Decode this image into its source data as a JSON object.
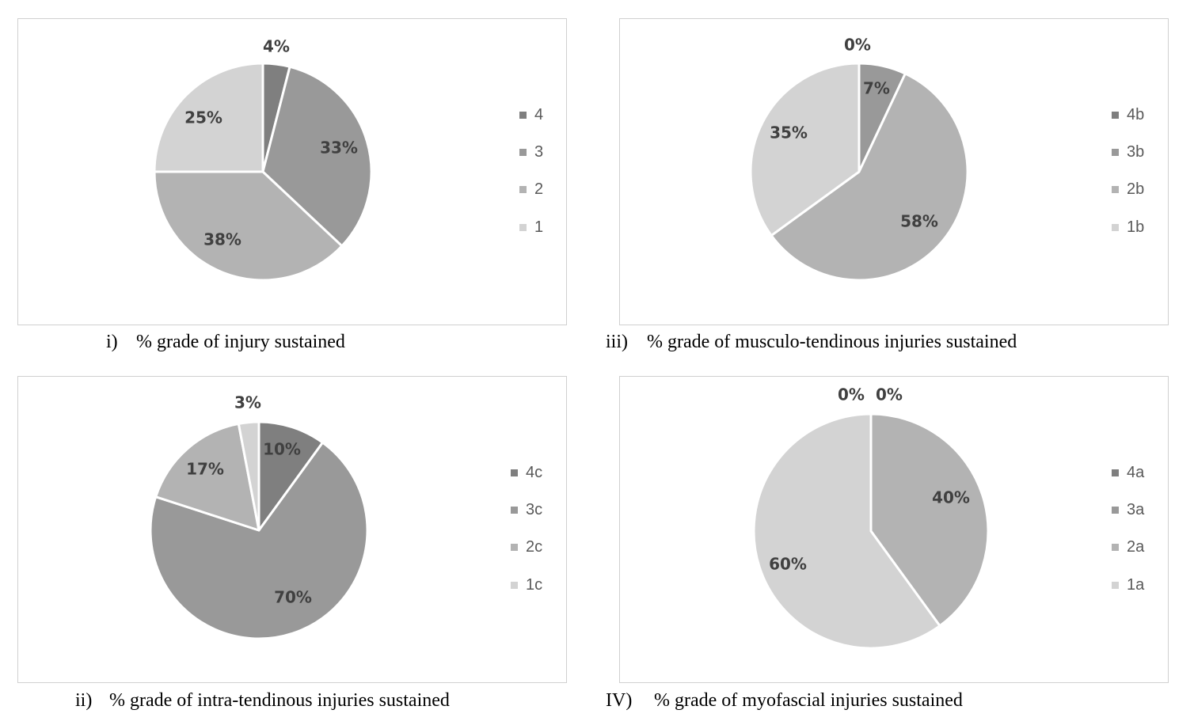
{
  "chart_data": [
    {
      "type": "pie",
      "caption_number": "i)",
      "caption_text": "% grade of injury sustained",
      "categories": [
        "4",
        "3",
        "2",
        "1"
      ],
      "values": [
        4,
        33,
        38,
        25
      ],
      "data_labels": [
        "4%",
        "33%",
        "38%",
        "25%"
      ],
      "colors": [
        "#7f7f7f",
        "#999999",
        "#b3b3b3",
        "#d3d3d3"
      ],
      "legend_position": "right"
    },
    {
      "type": "pie",
      "caption_number": "iii)",
      "caption_text": "% grade of musculo-tendinous injuries sustained",
      "categories": [
        "4b",
        "3b",
        "2b",
        "1b"
      ],
      "values": [
        0,
        7,
        58,
        35
      ],
      "data_labels": [
        "0%",
        "7%",
        "58%",
        "35%"
      ],
      "colors": [
        "#7f7f7f",
        "#999999",
        "#b3b3b3",
        "#d3d3d3"
      ],
      "legend_position": "right"
    },
    {
      "type": "pie",
      "caption_number": "ii)",
      "caption_text": "% grade of intra-tendinous injuries sustained",
      "categories": [
        "4c",
        "3c",
        "2c",
        "1c"
      ],
      "values": [
        10,
        70,
        17,
        3
      ],
      "data_labels": [
        "10%",
        "70%",
        "17%",
        "3%"
      ],
      "colors": [
        "#7f7f7f",
        "#999999",
        "#b3b3b3",
        "#d3d3d3"
      ],
      "legend_position": "right"
    },
    {
      "type": "pie",
      "caption_number": "IV)",
      "caption_text": "% grade of myofascial injuries sustained",
      "categories": [
        "4a",
        "3a",
        "2a",
        "1a"
      ],
      "values": [
        0,
        0,
        40,
        60
      ],
      "data_labels": [
        "0%",
        "0%",
        "40%",
        "60%"
      ],
      "colors": [
        "#7f7f7f",
        "#999999",
        "#b3b3b3",
        "#d3d3d3"
      ],
      "legend_position": "right"
    }
  ]
}
